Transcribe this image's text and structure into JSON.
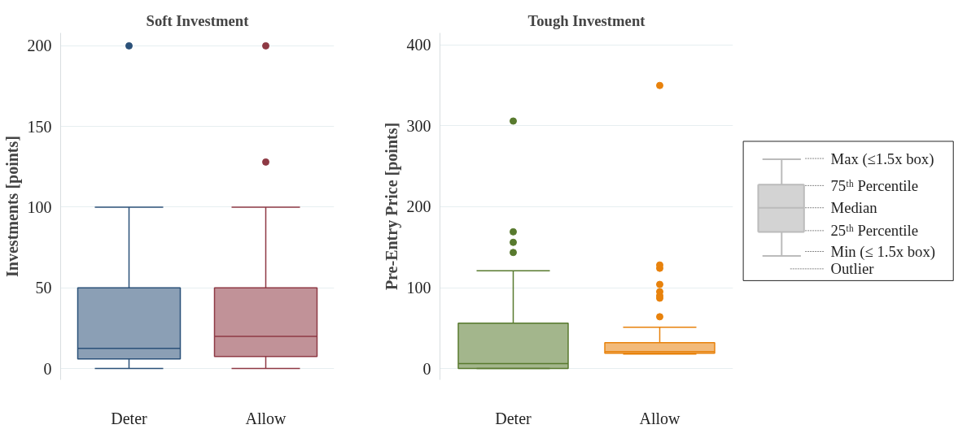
{
  "chart_data": [
    {
      "type": "box",
      "title": "Soft Investment",
      "ylabel": "Investments [points]",
      "categories": [
        "Deter",
        "Allow"
      ],
      "colors": [
        "#2b5179",
        "#8e3944"
      ],
      "boxes": [
        {
          "low": 0,
          "q1": 6,
          "median": 12.5,
          "q3": 50,
          "high": 100,
          "outliers": [
            200
          ]
        },
        {
          "low": 0,
          "q1": 7.5,
          "median": 20,
          "q3": 50,
          "high": 100,
          "outliers": [
            128,
            200
          ]
        }
      ],
      "ylim": [
        -7,
        208
      ],
      "yticks": [
        0,
        50,
        100,
        150,
        200
      ],
      "grid": "y"
    },
    {
      "type": "box",
      "title": "Tough Investment",
      "ylabel": "Pre-Entry Price [points]",
      "categories": [
        "Deter",
        "Allow"
      ],
      "colors": [
        "#587a2e",
        "#e8820c"
      ],
      "boxes": [
        {
          "low": 0,
          "q1": 0,
          "median": 6,
          "q3": 56,
          "high": 121,
          "outliers": [
            143.5,
            156,
            169,
            306
          ]
        },
        {
          "low": 18,
          "q1": 19,
          "median": 21,
          "q3": 32,
          "high": 51,
          "outliers": [
            64,
            87,
            90,
            95,
            104,
            124,
            128,
            350
          ]
        }
      ],
      "ylim": [
        -14,
        415
      ],
      "yticks": [
        0,
        100,
        200,
        300,
        400
      ],
      "grid": "y"
    },
    {
      "type": "other",
      "annotations": [
        "Max (≤1.5x box)",
        "75ᵗʰ Percentile",
        "Median",
        "25ᵗʰ Percentile",
        "Min (≤ 1.5x box)",
        "Outlier"
      ]
    }
  ]
}
